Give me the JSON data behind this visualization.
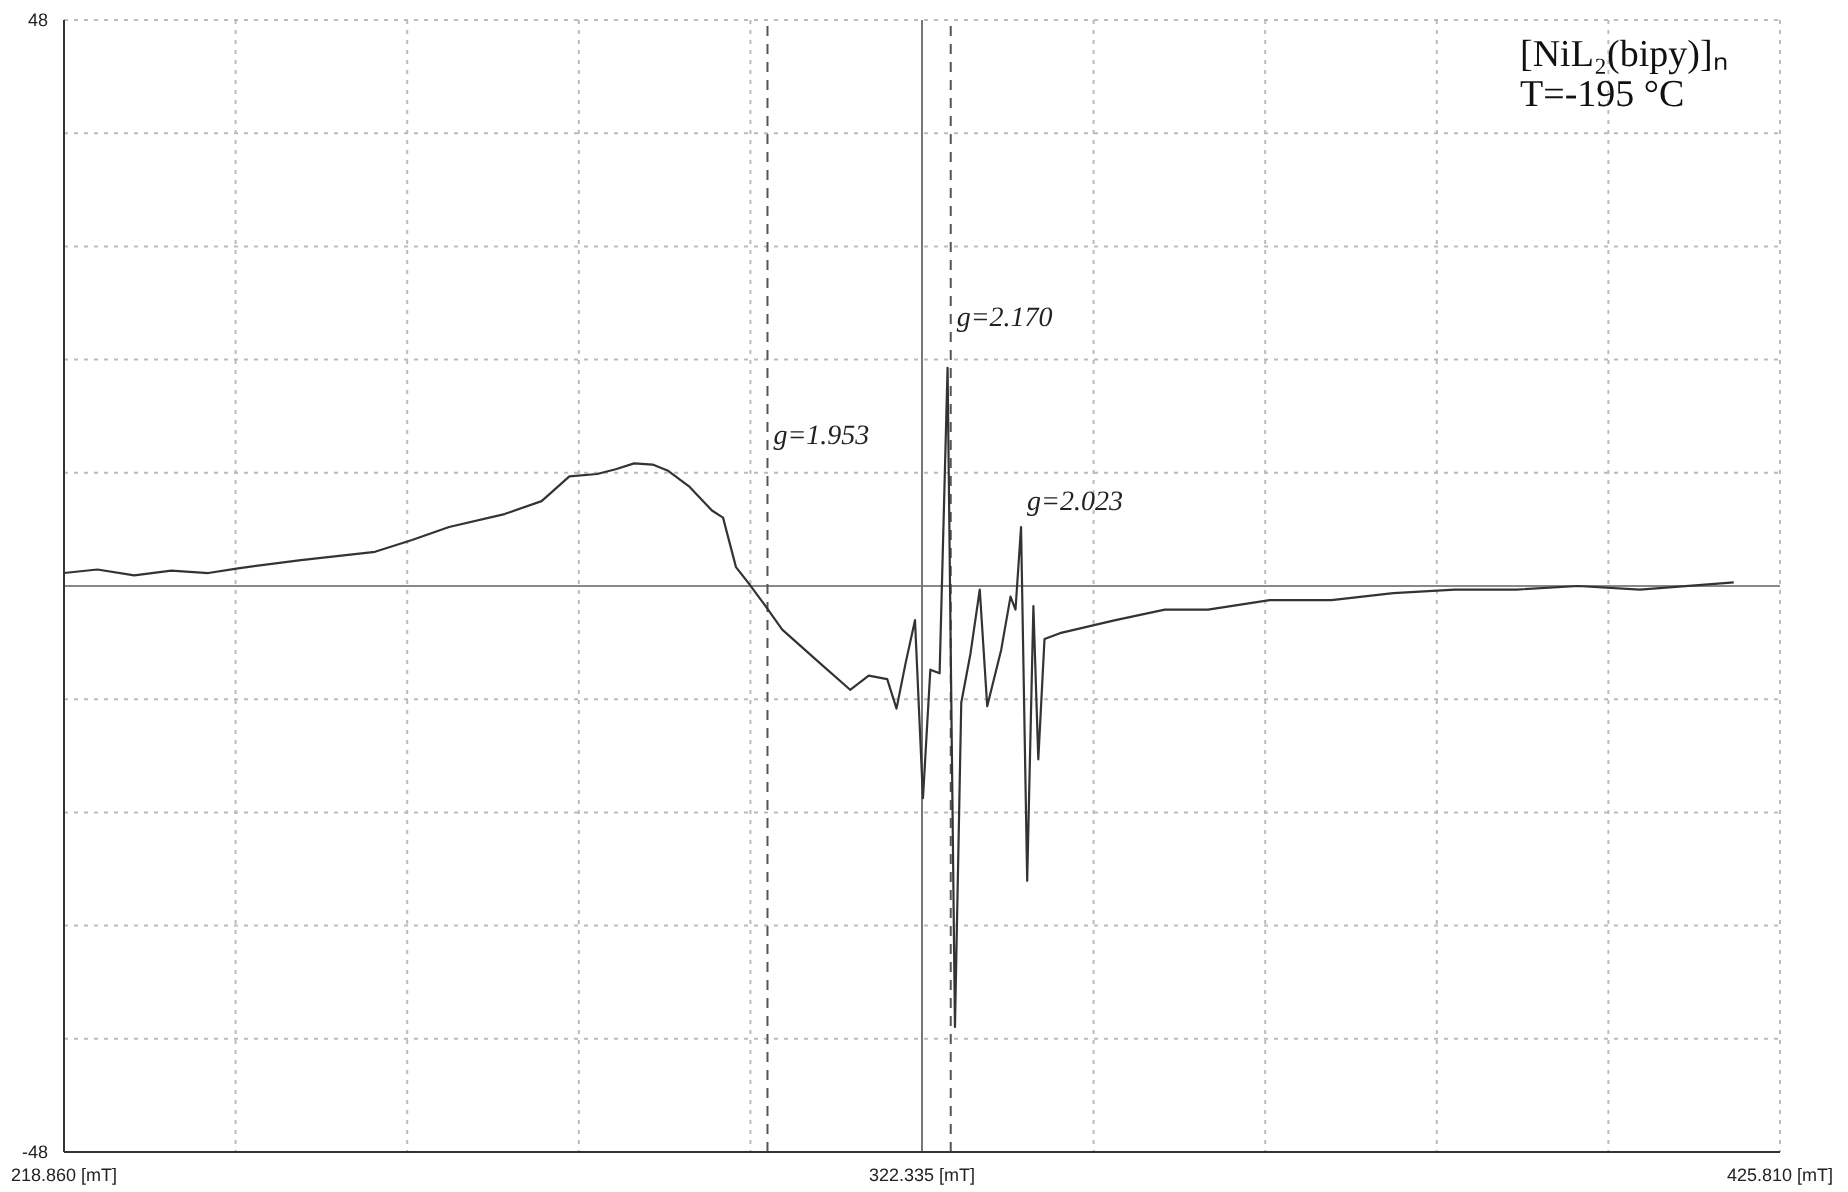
{
  "chart_data": {
    "type": "line",
    "color": "#333333",
    "marker": "none",
    "line_style": "solid",
    "grid": true,
    "xlim": [
      218.86,
      425.81
    ],
    "xticks": [
      {
        "value": 218.86,
        "label": "218.860 [mT]"
      },
      {
        "value": 239.555,
        "label": null
      },
      {
        "value": 260.25,
        "label": null
      },
      {
        "value": 280.945,
        "label": null
      },
      {
        "value": 301.64,
        "label": null
      },
      {
        "value": 322.335,
        "label": "322.335 [mT]"
      },
      {
        "value": 343.03,
        "label": null
      },
      {
        "value": 363.725,
        "label": null
      },
      {
        "value": 384.42,
        "label": null
      },
      {
        "value": 405.115,
        "label": null
      },
      {
        "value": 425.81,
        "label": "425.810 [mT]"
      }
    ],
    "ylim": [
      -48,
      48
    ],
    "yticks": [
      -48,
      {
        "value": -38.4,
        "label": null
      },
      {
        "value": -28.8,
        "label": null
      },
      {
        "value": -19.2,
        "label": null
      },
      {
        "value": -9.6,
        "label": null
      },
      {
        "value": 0,
        "label": null
      },
      {
        "value": 9.6,
        "label": null
      },
      {
        "value": 19.2,
        "label": null
      },
      {
        "value": 28.8,
        "label": null
      },
      {
        "value": 38.4,
        "label": null
      },
      48
    ],
    "x": [
      218.86,
      222.88,
      227.34,
      231.81,
      236.27,
      239.85,
      247.44,
      256.37,
      260.83,
      265.3,
      271.99,
      276.46,
      279.81,
      283.16,
      285.39,
      287.62,
      289.85,
      291.64,
      294.32,
      297.0,
      298.34,
      299.9,
      301.46,
      303.25,
      305.48,
      309.95,
      313.67,
      315.91,
      318.14,
      319.26,
      320.37,
      321.49,
      322.45,
      323.34,
      324.46,
      325.42,
      326.31,
      327.07,
      328.19,
      329.3,
      330.2,
      331.89,
      333.01,
      333.61,
      334.28,
      335.02,
      335.77,
      336.36,
      337.11,
      338.97,
      345.67,
      351.62,
      356.83,
      364.26,
      371.72,
      379.17,
      386.6,
      394.04,
      401.47,
      408.91,
      416.36,
      420.23
    ],
    "values": [
      1.1,
      1.4,
      0.9,
      1.3,
      1.1,
      1.5,
      2.2,
      2.9,
      3.9,
      5.0,
      6.1,
      7.2,
      9.3,
      9.5,
      9.9,
      10.4,
      10.3,
      9.8,
      8.4,
      6.4,
      5.8,
      1.6,
      0.2,
      -1.5,
      -3.7,
      -6.5,
      -8.8,
      -7.6,
      -7.9,
      -10.4,
      -6.5,
      -2.9,
      -18.0,
      -7.1,
      -7.4,
      18.5,
      -37.4,
      -9.9,
      -5.7,
      -0.3,
      -10.2,
      -5.4,
      -0.9,
      -2.0,
      5.0,
      -25.0,
      -1.7,
      -14.7,
      -4.5,
      -4.0,
      -2.9,
      -2.0,
      -2.0,
      -1.2,
      -1.2,
      -0.6,
      -0.3,
      -0.3,
      0,
      -0.3,
      0.1,
      0.3
    ],
    "ref_lines": [
      {
        "axis": "y",
        "value": 0,
        "color": "#888888",
        "line_style": "solid"
      },
      {
        "axis": "x",
        "value": 303.7,
        "color": "#555555",
        "line_style": "dashed"
      },
      {
        "axis": "x",
        "value": 322.335,
        "color": "#777777",
        "line_style": "solid"
      },
      {
        "axis": "x",
        "value": 325.8,
        "color": "#555555",
        "line_style": "dashed"
      }
    ],
    "annotations": [
      "[NiL₂(bipy)]ₙ",
      "T=-195 °C",
      {
        "text": "g=1.953",
        "x": 303.7,
        "y": 12.5
      },
      {
        "text": "g=2.170",
        "x": 325.8,
        "y": 22.5
      },
      {
        "text": "g=2.023",
        "x": 334.28,
        "y": 5.0
      }
    ]
  }
}
